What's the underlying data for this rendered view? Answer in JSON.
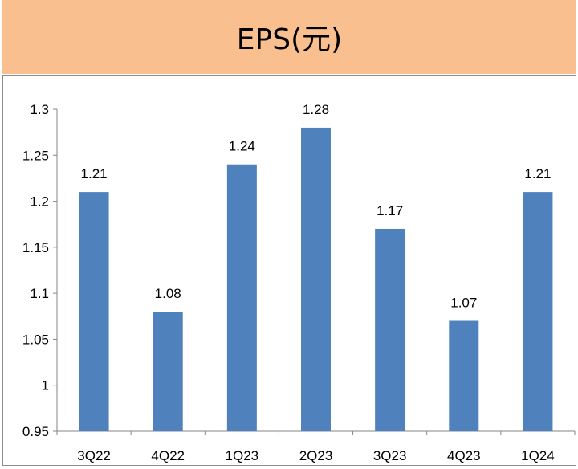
{
  "header": {
    "title": "EPS(元)"
  },
  "chart_data": {
    "type": "bar",
    "title": "EPS(元)",
    "categories": [
      "3Q22",
      "4Q22",
      "1Q23",
      "2Q23",
      "3Q23",
      "4Q23",
      "1Q24"
    ],
    "values": [
      1.21,
      1.08,
      1.24,
      1.28,
      1.17,
      1.07,
      1.21
    ],
    "data_labels": [
      "1.21",
      "1.08",
      "1.24",
      "1.28",
      "1.17",
      "1.07",
      "1.21"
    ],
    "ylim": [
      0.95,
      1.3
    ],
    "yticks": [
      "0.95",
      "1",
      "1.05",
      "1.1",
      "1.15",
      "1.2",
      "1.25",
      "1.3"
    ],
    "bar_color": "#4F81BD",
    "grid": false,
    "legend": "none"
  }
}
